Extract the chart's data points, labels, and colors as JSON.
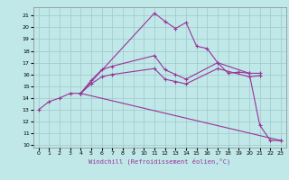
{
  "title": "",
  "xlabel": "Windchill (Refroidissement éolien,°C)",
  "ylabel": "",
  "xlim": [
    -0.5,
    23.5
  ],
  "ylim": [
    9.8,
    21.7
  ],
  "xticks": [
    0,
    1,
    2,
    3,
    4,
    5,
    6,
    7,
    8,
    9,
    10,
    11,
    12,
    13,
    14,
    15,
    16,
    17,
    18,
    19,
    20,
    21,
    22,
    23
  ],
  "yticks": [
    10,
    11,
    12,
    13,
    14,
    15,
    16,
    17,
    18,
    19,
    20,
    21
  ],
  "bg_color": "#c0e8e8",
  "grid_color": "#a0c8c8",
  "line_color": "#993399",
  "xlabel_color": "#993399",
  "lines": [
    {
      "x": [
        0,
        1,
        2,
        3,
        4,
        11,
        12,
        13,
        14,
        15,
        16,
        17,
        18,
        19,
        20,
        21,
        22,
        23
      ],
      "y": [
        13.0,
        13.7,
        14.0,
        14.4,
        14.4,
        21.2,
        20.5,
        19.9,
        20.4,
        18.4,
        18.2,
        17.0,
        16.1,
        16.2,
        16.1,
        11.7,
        10.4,
        10.4
      ]
    },
    {
      "x": [
        4,
        5,
        6,
        7,
        11,
        12,
        13,
        14,
        17,
        20,
        21
      ],
      "y": [
        14.4,
        15.5,
        16.4,
        16.7,
        17.6,
        16.4,
        16.0,
        15.6,
        17.0,
        16.1,
        16.1
      ]
    },
    {
      "x": [
        4,
        5,
        6,
        7,
        11,
        12,
        13,
        14,
        17,
        20,
        21
      ],
      "y": [
        14.4,
        15.2,
        15.8,
        16.0,
        16.5,
        15.6,
        15.4,
        15.2,
        16.5,
        15.8,
        15.9
      ]
    },
    {
      "x": [
        4,
        23
      ],
      "y": [
        14.4,
        10.4
      ]
    }
  ],
  "marker": "+"
}
